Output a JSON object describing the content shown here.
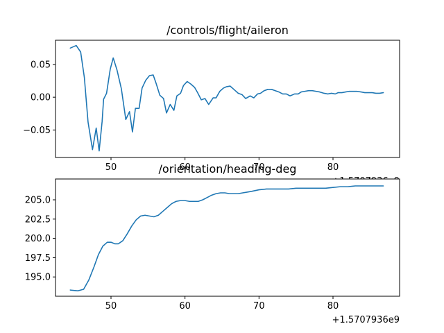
{
  "chart_data": [
    {
      "type": "line",
      "title": "/controls/flight/aileron",
      "xlabel": "",
      "ylabel": "",
      "x_offset_label": "+1.5707936e9",
      "xlim": [
        42.5,
        89
      ],
      "ylim": [
        -0.092,
        0.087
      ],
      "xticks": [
        50,
        60,
        70,
        80
      ],
      "yticks": [
        -0.05,
        0.0,
        0.05
      ],
      "ytick_labels": [
        "−0.05",
        "0.00",
        "0.05"
      ],
      "grid": false,
      "color": "#1f77b4",
      "series": [
        {
          "x": [
            44.5,
            45.3,
            45.9,
            46.4,
            46.9,
            47.5,
            48.0,
            48.4,
            48.8,
            49.0,
            49.4,
            49.9,
            50.3,
            50.8,
            51.4,
            52.0,
            52.5,
            52.9,
            53.3,
            53.8,
            54.2,
            54.7,
            55.2,
            55.7,
            56.1,
            56.6,
            57.1,
            57.5,
            58.0,
            58.5,
            58.9,
            59.4,
            59.8,
            60.3,
            60.8,
            61.3,
            61.7,
            62.2,
            62.7,
            63.2,
            63.8,
            64.2,
            64.7,
            65.2,
            65.6,
            66.1,
            66.6,
            67.2,
            67.7,
            68.2,
            68.8,
            69.3,
            69.8,
            70.2,
            70.7,
            71.2,
            71.7,
            72.2,
            72.7,
            73.2,
            73.7,
            74.2,
            74.8,
            75.3,
            75.7,
            76.2,
            76.7,
            77.2,
            77.7,
            78.2,
            78.8,
            79.3,
            79.8,
            80.3,
            80.7,
            81.2,
            81.7,
            82.2,
            82.7,
            83.2,
            83.8,
            84.3,
            84.8,
            85.3,
            85.8,
            86.3,
            86.8
          ],
          "y": [
            0.075,
            0.079,
            0.069,
            0.03,
            -0.038,
            -0.08,
            -0.047,
            -0.082,
            -0.037,
            -0.003,
            0.006,
            0.043,
            0.06,
            0.042,
            0.013,
            -0.034,
            -0.022,
            -0.053,
            -0.017,
            -0.017,
            0.014,
            0.026,
            0.033,
            0.034,
            0.021,
            0.003,
            -0.002,
            -0.024,
            -0.011,
            -0.02,
            0.002,
            0.006,
            0.018,
            0.024,
            0.02,
            0.015,
            0.007,
            -0.004,
            -0.002,
            -0.011,
            -0.001,
            -0.001,
            0.009,
            0.014,
            0.016,
            0.017,
            0.012,
            0.006,
            0.004,
            -0.002,
            0.002,
            -0.001,
            0.005,
            0.006,
            0.01,
            0.012,
            0.012,
            0.01,
            0.008,
            0.005,
            0.005,
            0.002,
            0.005,
            0.005,
            0.008,
            0.009,
            0.01,
            0.01,
            0.009,
            0.008,
            0.006,
            0.005,
            0.006,
            0.005,
            0.007,
            0.007,
            0.008,
            0.009,
            0.009,
            0.009,
            0.008,
            0.007,
            0.007,
            0.007,
            0.006,
            0.006,
            0.007
          ]
        }
      ]
    },
    {
      "type": "line",
      "title": "/orientation/heading-deg",
      "xlabel": "",
      "ylabel": "",
      "x_offset_label": "+1.5707936e9",
      "xlim": [
        42.5,
        89
      ],
      "ylim": [
        192.5,
        207.7
      ],
      "xticks": [
        50,
        60,
        70,
        80
      ],
      "yticks": [
        195.0,
        197.5,
        200.0,
        202.5,
        205.0
      ],
      "ytick_labels": [
        "195.0",
        "197.5",
        "200.0",
        "202.5",
        "205.0"
      ],
      "grid": false,
      "color": "#1f77b4",
      "series": [
        {
          "x": [
            44.5,
            45.5,
            46.3,
            47.0,
            47.7,
            48.3,
            48.9,
            49.5,
            50.0,
            50.5,
            51.0,
            51.6,
            52.2,
            52.8,
            53.4,
            54.0,
            54.6,
            55.2,
            55.8,
            56.4,
            57.0,
            57.6,
            58.2,
            58.8,
            59.4,
            60.0,
            60.6,
            61.2,
            61.8,
            62.4,
            63.0,
            63.6,
            64.2,
            64.8,
            65.4,
            66.0,
            66.6,
            67.2,
            67.8,
            68.4,
            69.0,
            70.0,
            71.0,
            72.0,
            73.0,
            74.0,
            75.0,
            76.0,
            77.0,
            78.0,
            79.0,
            80.0,
            81.0,
            82.0,
            83.0,
            84.0,
            85.0,
            86.0,
            86.8
          ],
          "y": [
            193.3,
            193.2,
            193.4,
            194.6,
            196.3,
            197.9,
            199.0,
            199.5,
            199.5,
            199.3,
            199.3,
            199.7,
            200.6,
            201.6,
            202.4,
            202.9,
            203.0,
            202.9,
            202.8,
            203.0,
            203.5,
            204.0,
            204.5,
            204.8,
            204.9,
            204.9,
            204.8,
            204.8,
            204.8,
            205.0,
            205.3,
            205.6,
            205.8,
            205.9,
            205.9,
            205.8,
            205.8,
            205.8,
            205.9,
            206.0,
            206.1,
            206.3,
            206.4,
            206.4,
            206.4,
            206.4,
            206.5,
            206.5,
            206.5,
            206.5,
            206.5,
            206.6,
            206.7,
            206.7,
            206.8,
            206.8,
            206.8,
            206.8,
            206.8
          ]
        }
      ]
    }
  ]
}
